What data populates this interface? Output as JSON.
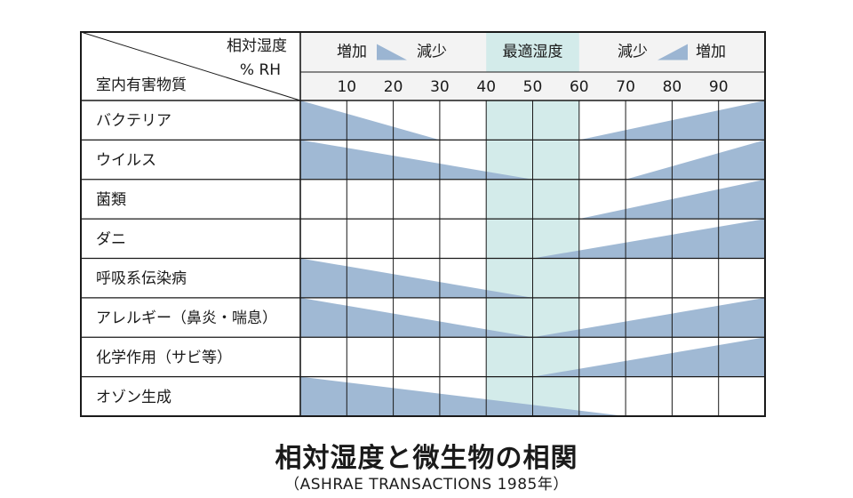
{
  "chart_data": {
    "type": "table",
    "title": "相対湿度と微生物の相関",
    "subtitle": "（ASHRAE TRANSACTIONS 1985年）",
    "header": {
      "rh_label_line1": "相対湿度",
      "rh_label_line2": "% RH",
      "substance_label": "室内有害物質",
      "increase_label": "増加",
      "decrease_label": "減少",
      "optimal_label": "最適湿度"
    },
    "x_range": [
      0,
      100
    ],
    "ticks": [
      10,
      20,
      30,
      40,
      50,
      60,
      70,
      80,
      90
    ],
    "optimal_range": [
      40,
      60
    ],
    "rows": [
      {
        "name": "バクテリア",
        "left": {
          "start": 0,
          "end": 30
        },
        "right": {
          "start": 60,
          "end": 100
        }
      },
      {
        "name": "ウイルス",
        "left": {
          "start": 0,
          "end": 50
        },
        "right": {
          "start": 70,
          "end": 100
        }
      },
      {
        "name": "菌類",
        "left": null,
        "right": {
          "start": 60,
          "end": 100
        }
      },
      {
        "name": "ダニ",
        "left": null,
        "right": {
          "start": 50,
          "end": 100
        }
      },
      {
        "name": "呼吸系伝染病",
        "left": {
          "start": 0,
          "end": 50
        },
        "right": null
      },
      {
        "name": "アレルギー（鼻炎・喘息）",
        "left": {
          "start": 0,
          "end": 50
        },
        "right": {
          "start": 50,
          "end": 100
        }
      },
      {
        "name": "化学作用（サビ等）",
        "left": null,
        "right": {
          "start": 50,
          "end": 100
        }
      },
      {
        "name": "オゾン生成",
        "left": {
          "start": 0,
          "end": 70
        },
        "right": null
      }
    ]
  },
  "colors": {
    "wedge": "#9bb5d2",
    "optimal": "#d3ebea",
    "header_bg": "#f3f3f3",
    "grid": "#1a1a1a",
    "text": "#1a1a1a"
  }
}
